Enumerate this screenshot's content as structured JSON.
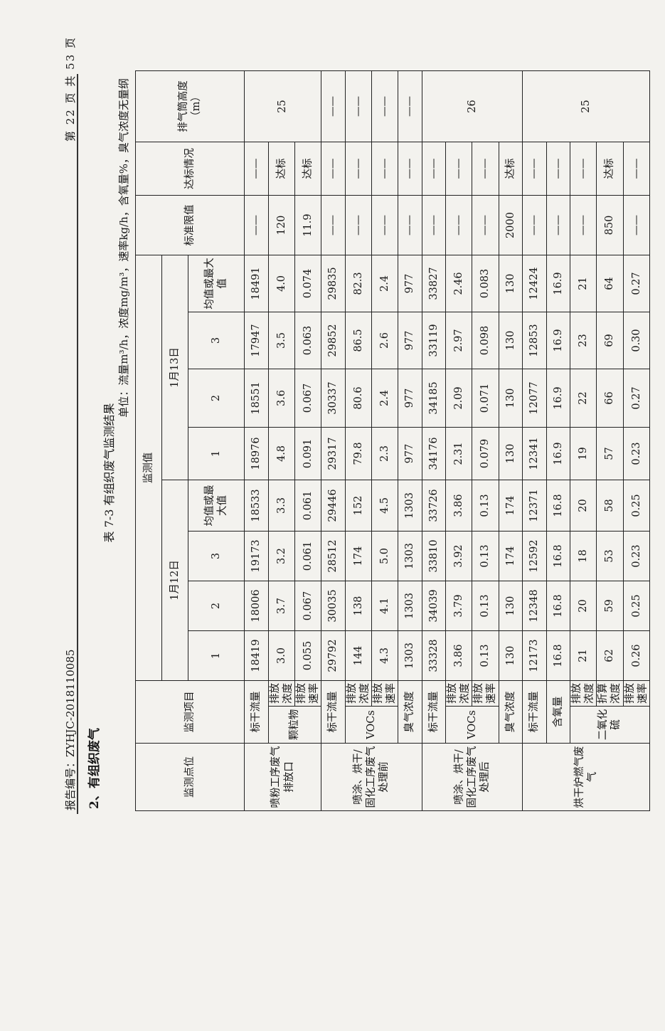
{
  "header": {
    "report_no": "报告编号：ZYHJC-2018110085",
    "page": "第 22 页 共 53 页"
  },
  "section": "2、有组织废气",
  "table": {
    "caption": "表 7-3 有组织废气监测结果",
    "unit": "单位：流量m³/h，浓度mg/m³，速率kg/h，含氧量%，臭气浓度无量纲",
    "headers": {
      "point": "监测点位",
      "item": "监测项目",
      "value": "监测值",
      "dates": [
        "1月12日",
        "1月13日"
      ],
      "samples": [
        [
          "1",
          "2",
          "3",
          "均值或最大值"
        ],
        [
          "1",
          "2",
          "3",
          "均值或最大值"
        ]
      ],
      "limit": "标准限值",
      "status": "达标情况",
      "height": "排气筒高度（m）"
    },
    "groups": [
      {
        "point": "喷粉工序废气排放口",
        "height": "25",
        "items": [
          {
            "name": "标干流量",
            "values": [
              "18419",
              "18006",
              "19173",
              "18533",
              "18976",
              "18551",
              "17947",
              "18491"
            ],
            "limit": "——",
            "status": "——"
          },
          {
            "name": "颗粒物",
            "subs": [
              {
                "name": "排放浓度",
                "values": [
                  "3.0",
                  "3.7",
                  "3.2",
                  "3.3",
                  "4.8",
                  "3.6",
                  "3.5",
                  "4.0"
                ],
                "limit": "120",
                "status": "达标"
              },
              {
                "name": "排放速率",
                "values": [
                  "0.055",
                  "0.067",
                  "0.061",
                  "0.061",
                  "0.091",
                  "0.067",
                  "0.063",
                  "0.074"
                ],
                "limit": "11.9",
                "status": "达标"
              }
            ]
          }
        ]
      },
      {
        "point": "喷涂、烘干/固化工序废气处理前",
        "items": [
          {
            "name": "标干流量",
            "values": [
              "29792",
              "30035",
              "28512",
              "29446",
              "29317",
              "30337",
              "29852",
              "29835"
            ],
            "limit": "——",
            "status": "——",
            "height": "——"
          },
          {
            "name": "VOCs",
            "subs": [
              {
                "name": "排放浓度",
                "values": [
                  "144",
                  "138",
                  "174",
                  "152",
                  "79.8",
                  "80.6",
                  "86.5",
                  "82.3"
                ],
                "limit": "——",
                "status": "——",
                "height": "——"
              },
              {
                "name": "排放速率",
                "values": [
                  "4.3",
                  "4.1",
                  "5.0",
                  "4.5",
                  "2.3",
                  "2.4",
                  "2.6",
                  "2.4"
                ],
                "limit": "——",
                "status": "——",
                "height": "——"
              }
            ]
          },
          {
            "name": "臭气浓度",
            "values": [
              "1303",
              "1303",
              "1303",
              "1303",
              "977",
              "977",
              "977",
              "977"
            ],
            "limit": "——",
            "status": "——",
            "height": "——"
          }
        ]
      },
      {
        "point": "喷涂、烘干/固化工序废气处理后",
        "height": "26",
        "items": [
          {
            "name": "标干流量",
            "values": [
              "33328",
              "34039",
              "33810",
              "33726",
              "34176",
              "34185",
              "33119",
              "33827"
            ],
            "limit": "——",
            "status": "——"
          },
          {
            "name": "VOCs",
            "subs": [
              {
                "name": "排放浓度",
                "values": [
                  "3.86",
                  "3.79",
                  "3.92",
                  "3.86",
                  "2.31",
                  "2.09",
                  "2.97",
                  "2.46"
                ],
                "limit": "——",
                "status": "——"
              },
              {
                "name": "排放速率",
                "values": [
                  "0.13",
                  "0.13",
                  "0.13",
                  "0.13",
                  "0.079",
                  "0.071",
                  "0.098",
                  "0.083"
                ],
                "limit": "——",
                "status": "——"
              }
            ]
          },
          {
            "name": "臭气浓度",
            "values": [
              "130",
              "130",
              "174",
              "174",
              "130",
              "130",
              "130",
              "130"
            ],
            "limit": "2000",
            "status": "达标"
          }
        ]
      },
      {
        "point": "烘干炉燃气废气",
        "height": "25",
        "items": [
          {
            "name": "标干流量",
            "values": [
              "12173",
              "12348",
              "12592",
              "12371",
              "12341",
              "12077",
              "12853",
              "12424"
            ],
            "limit": "——",
            "status": "——"
          },
          {
            "name": "含氧量",
            "values": [
              "16.8",
              "16.8",
              "16.8",
              "16.8",
              "16.9",
              "16.9",
              "16.9",
              "16.9"
            ],
            "limit": "——",
            "status": "——"
          },
          {
            "name": "二氧化硫",
            "subs": [
              {
                "name": "排放浓度",
                "values": [
                  "21",
                  "20",
                  "18",
                  "20",
                  "19",
                  "22",
                  "23",
                  "21"
                ],
                "limit": "——",
                "status": "——"
              },
              {
                "name": "折算浓度",
                "values": [
                  "62",
                  "59",
                  "53",
                  "58",
                  "57",
                  "66",
                  "69",
                  "64"
                ],
                "limit": "850",
                "status": "达标"
              },
              {
                "name": "排放速率",
                "values": [
                  "0.26",
                  "0.25",
                  "0.23",
                  "0.25",
                  "0.23",
                  "0.27",
                  "0.30",
                  "0.27"
                ],
                "limit": "——",
                "status": "——"
              }
            ]
          }
        ]
      }
    ]
  }
}
